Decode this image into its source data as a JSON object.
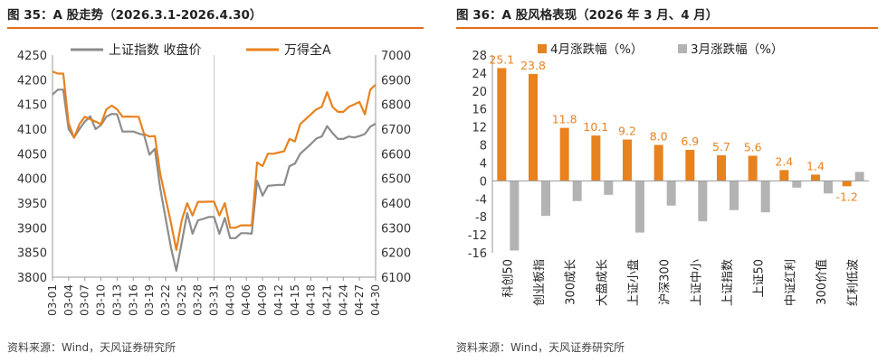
{
  "left": {
    "title": "图 35：A 股走势（2026.3.1-2026.4.30）",
    "source": "资料来源：Wind，天风证券研究所",
    "chart_data": {
      "type": "line",
      "x": [
        "03-01",
        "03-02",
        "03-03",
        "03-04",
        "03-05",
        "03-06",
        "03-07",
        "03-08",
        "03-09",
        "03-10",
        "03-11",
        "03-12",
        "03-13",
        "03-14",
        "03-15",
        "03-16",
        "03-17",
        "03-18",
        "03-19",
        "03-20",
        "03-21",
        "03-22",
        "03-23",
        "03-24",
        "03-25",
        "03-26",
        "03-27",
        "03-28",
        "03-29",
        "03-30",
        "03-31",
        "04-01",
        "04-02",
        "04-03",
        "04-04",
        "04-05",
        "04-06",
        "04-07",
        "04-08",
        "04-09",
        "04-10",
        "04-11",
        "04-12",
        "04-13",
        "04-14",
        "04-15",
        "04-16",
        "04-17",
        "04-18",
        "04-19",
        "04-20",
        "04-21",
        "04-22",
        "04-23",
        "04-24",
        "04-25",
        "04-26",
        "04-27",
        "04-28",
        "04-29",
        "04-30"
      ],
      "xticks": [
        "03-01",
        "03-04",
        "03-07",
        "03-10",
        "03-13",
        "03-16",
        "03-19",
        "03-22",
        "03-25",
        "03-28",
        "03-31",
        "04-03",
        "04-06",
        "04-09",
        "04-12",
        "04-15",
        "04-18",
        "04-21",
        "04-24",
        "04-27",
        "04-30"
      ],
      "yleft": {
        "min": 3800,
        "max": 4250,
        "step": 50
      },
      "yright": {
        "min": 6100,
        "max": 7000,
        "step": 100
      },
      "series": [
        {
          "name": "上证指数 收盘价",
          "axis": "left",
          "color": "#8c8c8c",
          "values": [
            4170,
            4180,
            4180,
            4100,
            4083,
            4100,
            4115,
            4126,
            4100,
            4108,
            4125,
            4131,
            4130,
            4095,
            4095,
            4095,
            4091,
            4088,
            4048,
            4060,
            3980,
            3920,
            3860,
            3813,
            3870,
            3930,
            3888,
            3915,
            3918,
            3922,
            3922,
            3888,
            3920,
            3879,
            3879,
            3889,
            3889,
            3888,
            3995,
            3965,
            3985,
            3986,
            3987,
            3987,
            4025,
            4030,
            4050,
            4060,
            4070,
            4081,
            4085,
            4106,
            4092,
            4080,
            4080,
            4085,
            4083,
            4086,
            4090,
            4105,
            4111
          ]
        },
        {
          "name": "万得全A",
          "axis": "right",
          "color": "#e8821e",
          "values": [
            6933,
            6925,
            6925,
            6725,
            6665,
            6720,
            6750,
            6740,
            6730,
            6720,
            6780,
            6795,
            6780,
            6750,
            6751,
            6750,
            6750,
            6680,
            6670,
            6672,
            6520,
            6420,
            6320,
            6210,
            6330,
            6400,
            6350,
            6405,
            6405,
            6406,
            6406,
            6350,
            6400,
            6300,
            6300,
            6310,
            6310,
            6310,
            6565,
            6550,
            6600,
            6600,
            6605,
            6610,
            6660,
            6650,
            6720,
            6740,
            6760,
            6780,
            6790,
            6850,
            6790,
            6770,
            6770,
            6790,
            6800,
            6810,
            6760,
            6860,
            6880
          ]
        }
      ],
      "grid": false,
      "legend": "top"
    }
  },
  "right": {
    "title": "图 36：A 股风格表现（2026 年 3 月、4 月）",
    "source": "资料来源：Wind，天风证券研究所",
    "chart_data": {
      "type": "bar",
      "categories": [
        "科创50",
        "创业板指",
        "300成长",
        "大盘成长",
        "上证小盘",
        "沪深300",
        "上证中小",
        "上证指数",
        "上证50",
        "中证红利",
        "300价值",
        "红利低波"
      ],
      "series": [
        {
          "name": "4月涨跌幅（%）",
          "color": "#e8821e",
          "values": [
            25.1,
            23.8,
            11.8,
            10.1,
            9.2,
            8.0,
            6.9,
            5.7,
            5.6,
            2.4,
            1.4,
            -1.2
          ],
          "labels": [
            "25.1",
            "23.8",
            "11.8",
            "10.1",
            "9.2",
            "8.0",
            "6.9",
            "5.7",
            "5.6",
            "2.4",
            "1.4",
            "-1.2"
          ]
        },
        {
          "name": "3月涨跌幅（%）",
          "color": "#b3b3b3",
          "values": [
            -15.5,
            -7.8,
            -4.5,
            -3.1,
            -11.5,
            -5.5,
            -9.0,
            -6.5,
            -7.0,
            -1.5,
            -2.8,
            2.0
          ]
        }
      ],
      "ylim": [
        -16,
        28
      ],
      "yticks": [
        28,
        24,
        20,
        16,
        12,
        8,
        4,
        0,
        -4,
        -8,
        -12,
        -16
      ],
      "legend": "top"
    }
  }
}
